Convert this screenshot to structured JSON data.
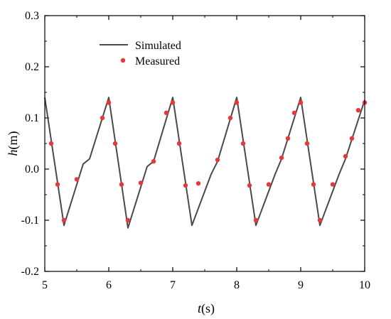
{
  "chart_data": {
    "type": "line",
    "xlabel": "t",
    "xunit": "(s)",
    "ylabel": "h",
    "yunit": "(m)",
    "xlim": [
      5,
      10
    ],
    "ylim": [
      -0.2,
      0.3
    ],
    "x_ticks": [
      "5",
      "6",
      "7",
      "8",
      "9",
      "10"
    ],
    "y_ticks": [
      "-0.2",
      "-0.1",
      "0.0",
      "0.1",
      "0.2",
      "0.3"
    ],
    "grid": false,
    "legend_position": "top-left",
    "series": [
      {
        "name": "Simulated",
        "style": "line",
        "color": "#4a4a4a",
        "x": [
          5.0,
          5.3,
          5.6,
          5.7,
          6.0,
          6.3,
          6.6,
          6.7,
          7.0,
          7.3,
          7.6,
          7.7,
          8.0,
          8.3,
          8.6,
          8.7,
          9.0,
          9.3,
          9.6,
          9.7,
          10.0
        ],
        "y": [
          0.14,
          -0.11,
          0.01,
          0.02,
          0.14,
          -0.115,
          0.005,
          0.015,
          0.14,
          -0.11,
          -0.01,
          0.015,
          0.14,
          -0.11,
          -0.01,
          0.02,
          0.14,
          -0.11,
          -0.01,
          0.02,
          0.135
        ]
      },
      {
        "name": "Measured",
        "style": "markers",
        "color": "#e8373a",
        "x": [
          5.1,
          5.2,
          5.3,
          5.5,
          5.9,
          6.0,
          6.1,
          6.2,
          6.3,
          6.5,
          6.7,
          6.9,
          7.0,
          7.1,
          7.2,
          7.4,
          7.7,
          7.9,
          8.0,
          8.1,
          8.2,
          8.3,
          8.5,
          8.7,
          8.8,
          8.9,
          9.0,
          9.1,
          9.2,
          9.3,
          9.5,
          9.7,
          9.8,
          9.9,
          10.0
        ],
        "y": [
          0.05,
          -0.03,
          -0.1,
          -0.02,
          0.1,
          0.13,
          0.05,
          -0.03,
          -0.1,
          -0.027,
          0.015,
          0.11,
          0.13,
          0.05,
          -0.032,
          -0.028,
          0.018,
          0.1,
          0.13,
          0.05,
          -0.032,
          -0.1,
          -0.03,
          0.022,
          0.06,
          0.11,
          0.13,
          0.05,
          -0.03,
          -0.1,
          -0.03,
          0.025,
          0.06,
          0.115,
          0.13
        ]
      }
    ]
  }
}
